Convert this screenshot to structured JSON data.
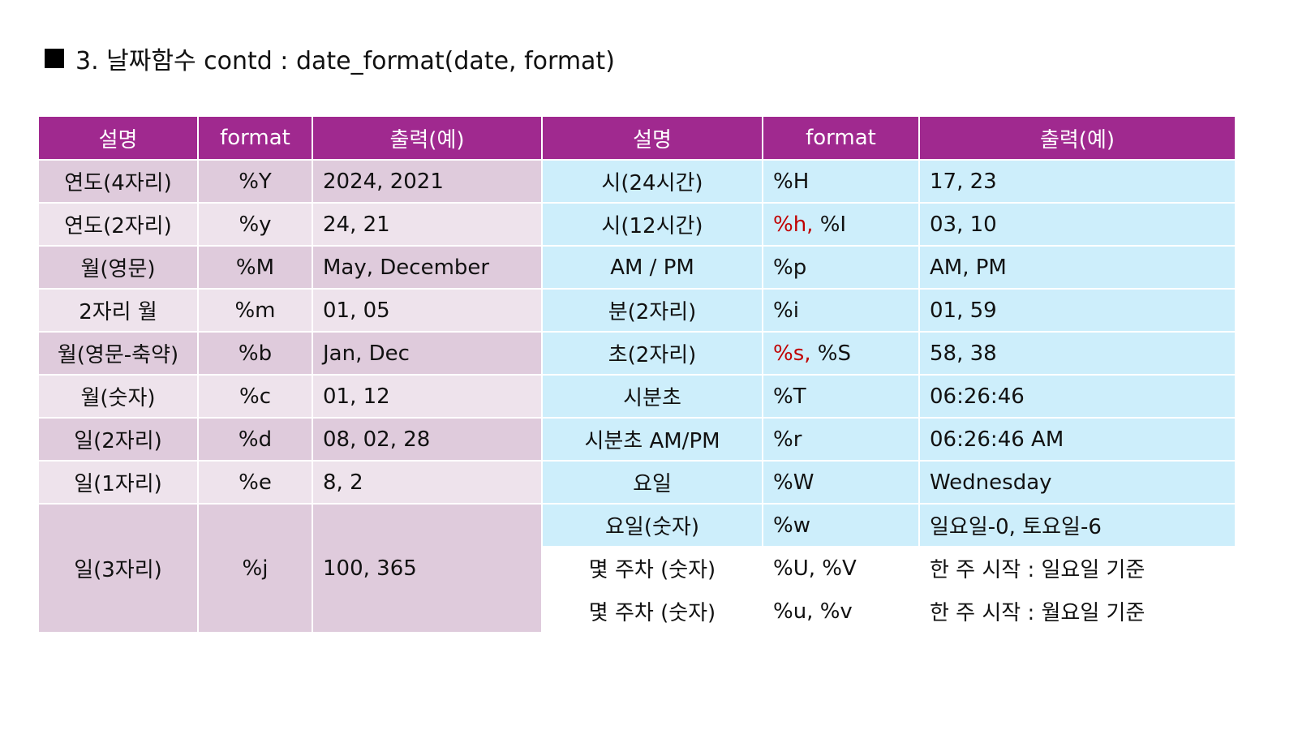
{
  "title": "3. 날짜함수 contd : date_format(date, format)",
  "colors": {
    "header": "#a0298f",
    "left_dark": "#dfcbdc",
    "left_light": "#eee3ec",
    "right": "#cdeefb",
    "highlight": "#c00000"
  },
  "headers": [
    "설명",
    "format",
    "출력(예)",
    "설명",
    "format",
    "출력(예)"
  ],
  "left_rows": [
    {
      "desc": "연도(4자리)",
      "format": "%Y",
      "output": "2024, 2021"
    },
    {
      "desc": "연도(2자리)",
      "format": "%y",
      "output": "24, 21"
    },
    {
      "desc": "월(영문)",
      "format": "%M",
      "output": "May, December"
    },
    {
      "desc": "2자리 월",
      "format": "%m",
      "output": "01, 05"
    },
    {
      "desc": "월(영문-축약)",
      "format": "%b",
      "output": "Jan, Dec"
    },
    {
      "desc": "월(숫자)",
      "format": "%c",
      "output": "01, 12"
    },
    {
      "desc": "일(2자리)",
      "format": "%d",
      "output": "08, 02, 28"
    },
    {
      "desc": "일(1자리)",
      "format": "%e",
      "output": "8, 2"
    },
    {
      "desc": "일(3자리)",
      "format": "%j",
      "output": "100, 365"
    }
  ],
  "right_rows": [
    {
      "desc": "시(24시간)",
      "format": "%H",
      "output": "17, 23"
    },
    {
      "desc": "시(12시간)",
      "format_red": "%h,",
      "format": " %I",
      "output": "03, 10"
    },
    {
      "desc": "AM / PM",
      "format": "%p",
      "output": "AM, PM"
    },
    {
      "desc": "분(2자리)",
      "format": "%i",
      "output": "01, 59"
    },
    {
      "desc": "초(2자리)",
      "format_red": "%s,",
      "format": " %S",
      "output": "58, 38"
    },
    {
      "desc": "시분초",
      "format": "%T",
      "output": "06:26:46"
    },
    {
      "desc": "시분초 AM/PM",
      "format": "%r",
      "output": "06:26:46 AM"
    },
    {
      "desc": "요일",
      "format": "%W",
      "output": "Wednesday"
    },
    {
      "desc": "요일(숫자)",
      "format": "%w",
      "output": "일요일-0, 토요일-6"
    },
    {
      "desc": "몇 주차 (숫자)",
      "format": "%U, %V",
      "output": "한 주 시작 : 일요일 기준"
    },
    {
      "desc": "몇 주차 (숫자)",
      "format": "%u, %v",
      "output": "한 주 시작 : 월요일 기준"
    }
  ]
}
